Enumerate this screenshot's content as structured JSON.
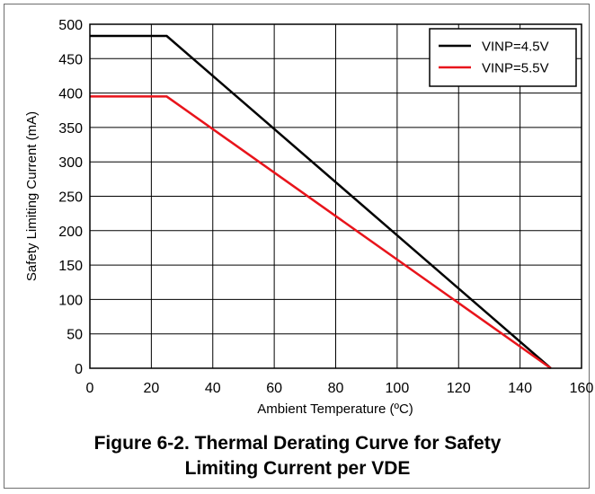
{
  "chart_data": {
    "type": "line",
    "xlabel": "Ambient Temperature (ºC)",
    "ylabel": "Safety Limiting Current  (mA)",
    "xlim": [
      0,
      160
    ],
    "ylim": [
      0,
      500
    ],
    "x_ticks": [
      0,
      20,
      40,
      60,
      80,
      100,
      120,
      140,
      160
    ],
    "y_ticks": [
      0,
      50,
      100,
      150,
      200,
      250,
      300,
      350,
      400,
      450,
      500
    ],
    "grid": true,
    "legend_position": "top-right",
    "series": [
      {
        "name": "VINP=4.5V",
        "color": "#000000",
        "x": [
          0,
          25,
          150
        ],
        "y": [
          483,
          483,
          0
        ]
      },
      {
        "name": "VINP=5.5V",
        "color": "#e8141b",
        "x": [
          0,
          25,
          150
        ],
        "y": [
          395,
          395,
          0
        ]
      }
    ]
  },
  "caption": {
    "line1": "Figure 6-2. Thermal Derating Curve for Safety",
    "line2": "Limiting Current per VDE"
  }
}
